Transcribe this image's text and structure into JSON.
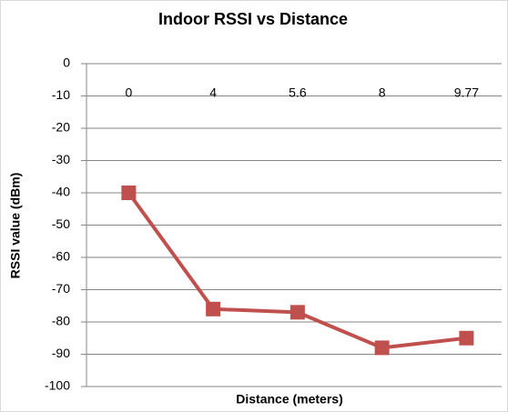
{
  "chart_data": {
    "type": "line",
    "title": "Indoor RSSI vs Distance",
    "x_label": "Distance (meters)",
    "y_label": "RSSI value (dBm)",
    "categories": [
      "0",
      "4",
      "5.6",
      "8",
      "9.77"
    ],
    "values": [
      -40,
      -76,
      -77,
      -88,
      -85
    ],
    "color": "#c0504d",
    "ylim": [
      -100,
      0
    ],
    "yticks": [
      0,
      -10,
      -20,
      -30,
      -40,
      -50,
      -60,
      -70,
      -80,
      -90,
      -100
    ],
    "grid": true
  }
}
